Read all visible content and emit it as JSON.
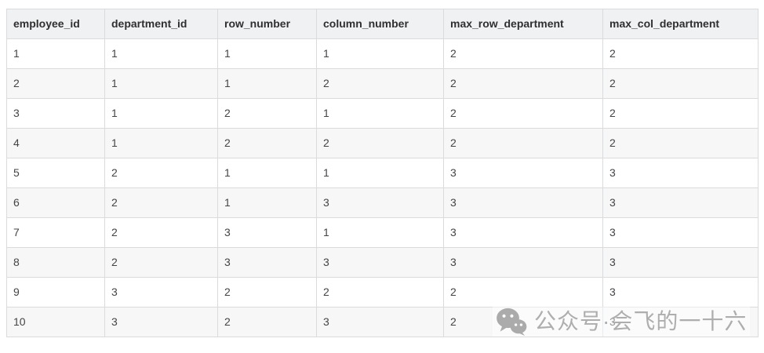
{
  "chart_data": {
    "type": "table",
    "title": "",
    "columns": [
      "employee_id",
      "department_id",
      "row_number",
      "column_number",
      "max_row_department",
      "max_col_department"
    ],
    "rows": [
      [
        "1",
        "1",
        "1",
        "1",
        "2",
        "2"
      ],
      [
        "2",
        "1",
        "1",
        "2",
        "2",
        "2"
      ],
      [
        "3",
        "1",
        "2",
        "1",
        "2",
        "2"
      ],
      [
        "4",
        "1",
        "2",
        "2",
        "2",
        "2"
      ],
      [
        "5",
        "2",
        "1",
        "1",
        "3",
        "3"
      ],
      [
        "6",
        "2",
        "1",
        "3",
        "3",
        "3"
      ],
      [
        "7",
        "2",
        "3",
        "1",
        "3",
        "3"
      ],
      [
        "8",
        "2",
        "3",
        "3",
        "3",
        "3"
      ],
      [
        "9",
        "3",
        "2",
        "2",
        "2",
        "3"
      ],
      [
        "10",
        "3",
        "2",
        "3",
        "2",
        "3"
      ]
    ]
  },
  "watermark": {
    "icon": "wechat-icon",
    "text": "公众号·会飞的一十六"
  },
  "colors": {
    "header_bg": "#f0f1f2",
    "stripe_bg": "#f7f7f8",
    "border": "#d9dbdd",
    "header_text": "#2f2f31",
    "cell_text": "#444446",
    "watermark_text": "#aeaeae",
    "watermark_icon": "#ababab"
  }
}
